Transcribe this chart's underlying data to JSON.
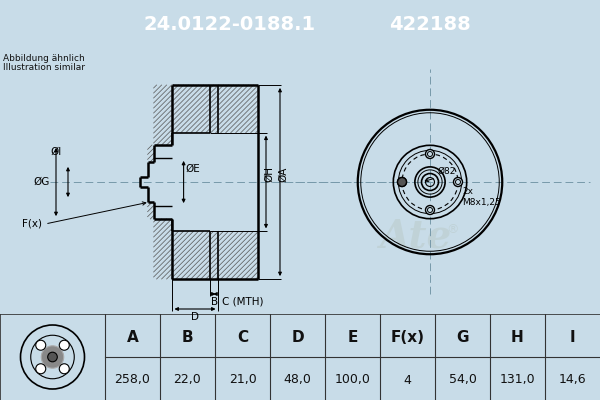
{
  "title_part_number": "24.0122-0188.1",
  "title_ref_number": "422188",
  "header_bg": "#0000cc",
  "header_text_color": "#ffffff",
  "bg_color": "#c8dce8",
  "table_bg": "#ffffff",
  "subtitle_line1": "Abbildung ähnlich",
  "subtitle_line2": "Illustration similar",
  "col_headers": [
    "A",
    "B",
    "C",
    "D",
    "E",
    "F(x)",
    "G",
    "H",
    "I"
  ],
  "col_values": [
    "258,0",
    "22,0",
    "21,0",
    "48,0",
    "100,0",
    "4",
    "54,0",
    "131,0",
    "14,6"
  ],
  "dim82": "Ø82",
  "m8x125": "M8x1,25",
  "note_2x": "2x",
  "line_color": "#000000",
  "dim_color": "#000000",
  "cross_color": "#7799aa",
  "hatch_color": "#555555",
  "watermark_color": "#bbcccc"
}
